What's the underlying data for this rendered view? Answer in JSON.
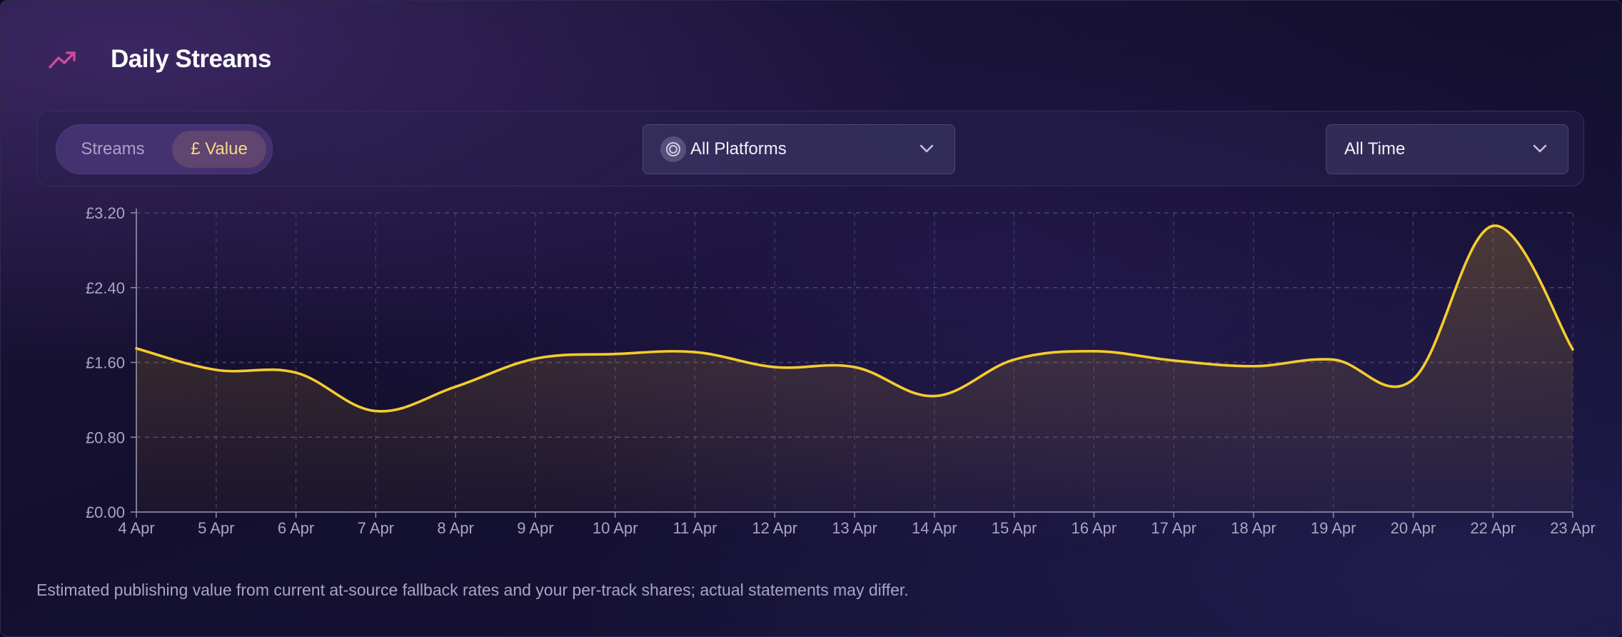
{
  "header": {
    "title": "Daily Streams",
    "icon": "trending-up-icon",
    "icon_color": "#d04a9a"
  },
  "toolbar": {
    "toggle": {
      "options": [
        "Streams",
        "£ Value"
      ],
      "selected": "£ Value"
    },
    "platform_select": {
      "value": "All Platforms",
      "icon": "platform-icon"
    },
    "time_select": {
      "value": "All Time"
    }
  },
  "chart_data": {
    "type": "area",
    "title": "",
    "xlabel": "",
    "ylabel": "",
    "categories": [
      "4 Apr",
      "5 Apr",
      "6 Apr",
      "7 Apr",
      "8 Apr",
      "9 Apr",
      "10 Apr",
      "11 Apr",
      "12 Apr",
      "13 Apr",
      "14 Apr",
      "15 Apr",
      "16 Apr",
      "17 Apr",
      "18 Apr",
      "19 Apr",
      "20 Apr",
      "22 Apr",
      "23 Apr"
    ],
    "series": [
      {
        "values": [
          1.75,
          1.52,
          1.49,
          1.08,
          1.34,
          1.64,
          1.69,
          1.71,
          1.55,
          1.55,
          1.24,
          1.63,
          1.72,
          1.62,
          1.56,
          1.63,
          1.42,
          3.06,
          1.74
        ],
        "color": "#f5cc2e"
      }
    ],
    "ylim": [
      0,
      3.2
    ],
    "yticks": [
      0,
      0.8,
      1.6,
      2.4,
      3.2
    ],
    "ytick_labels": [
      "£0.00",
      "£0.80",
      "£1.60",
      "£2.40",
      "£3.20"
    ],
    "grid": true,
    "legend": "none"
  },
  "footnote": "Estimated publishing value from current at-source fallback rates and your per-track shares; actual statements may differ."
}
